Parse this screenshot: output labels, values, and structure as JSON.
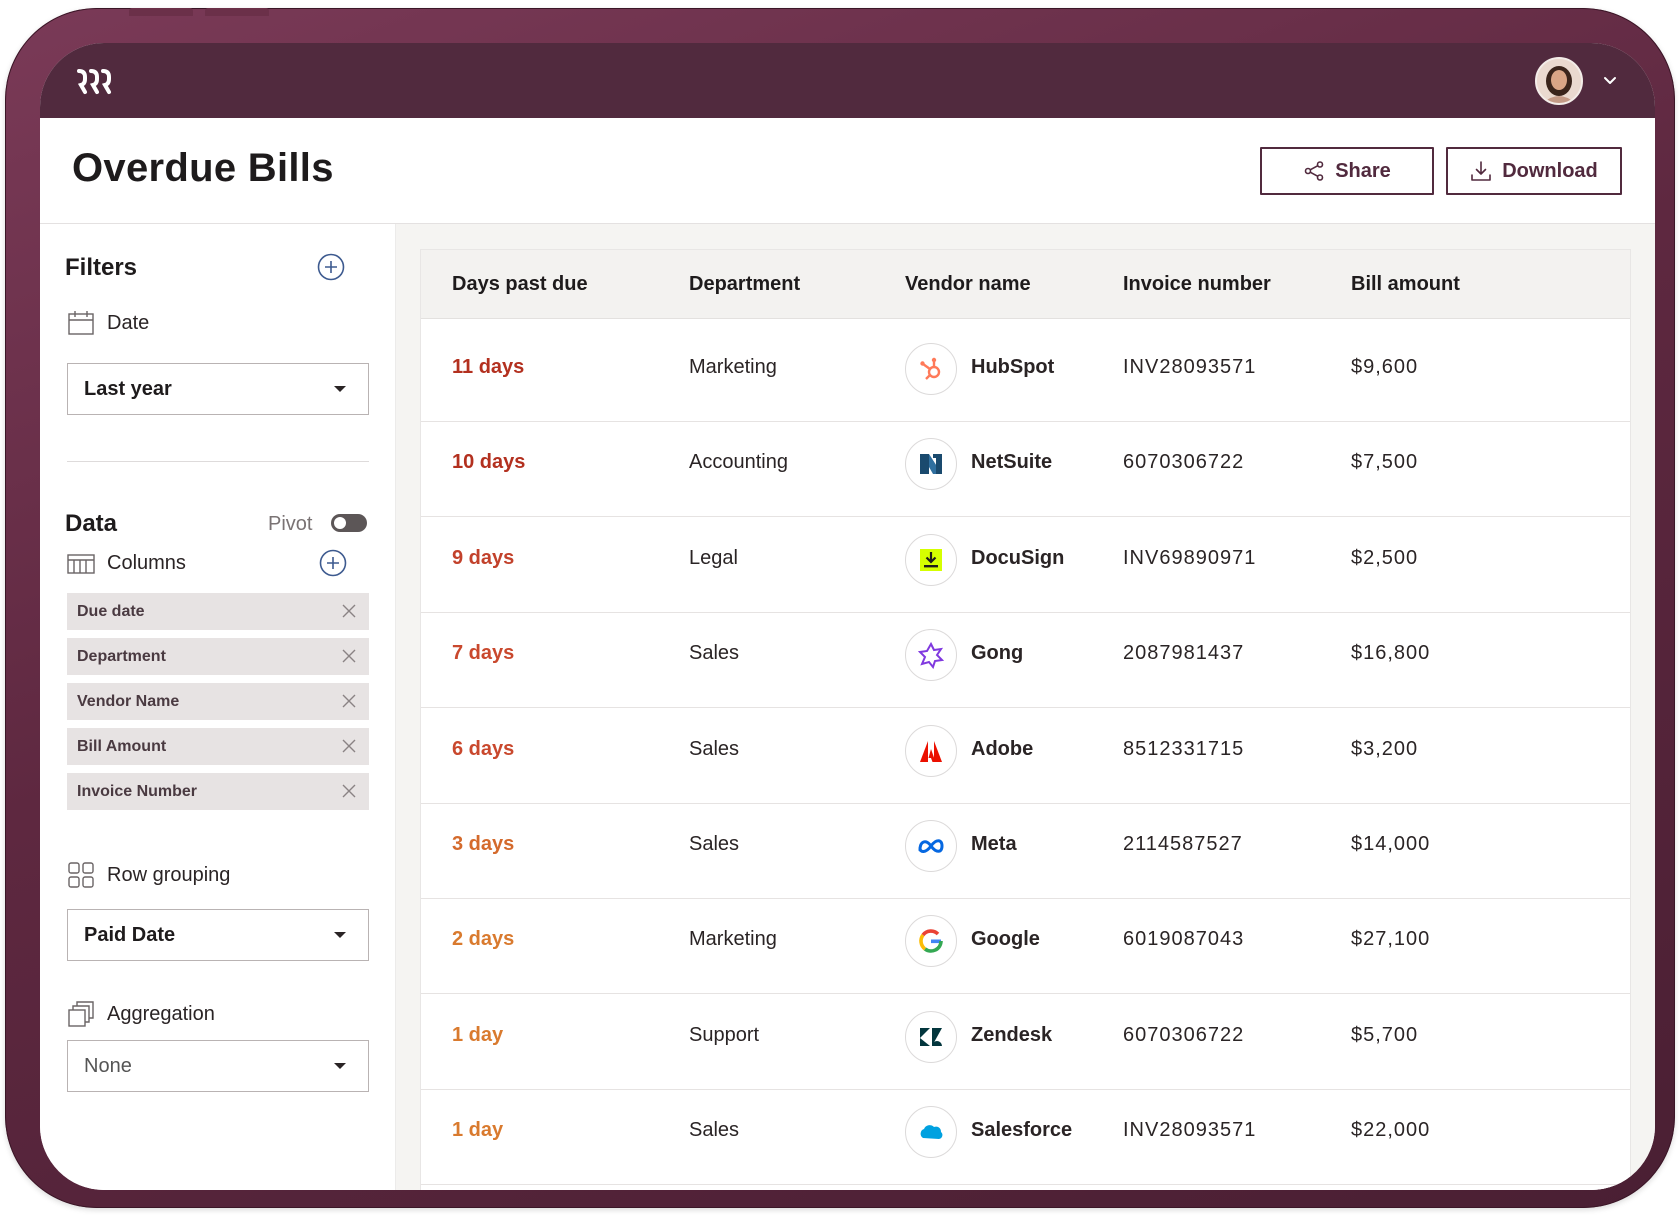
{
  "header": {
    "title": "Overdue Bills",
    "share_label": "Share",
    "download_label": "Download"
  },
  "sidebar": {
    "filters_title": "Filters",
    "date_label": "Date",
    "date_value": "Last year",
    "data_title": "Data",
    "pivot_label": "Pivot",
    "pivot_enabled": false,
    "columns_label": "Columns",
    "column_chips": [
      "Due date",
      "Department",
      "Vendor Name",
      "Bill Amount",
      "Invoice Number"
    ],
    "row_grouping_label": "Row grouping",
    "row_grouping_value": "Paid Date",
    "aggregation_label": "Aggregation",
    "aggregation_value": "None"
  },
  "table": {
    "columns": [
      "Days past due",
      "Department",
      "Vendor name",
      "Invoice number",
      "Bill amount"
    ],
    "rows": [
      {
        "days": "11 days",
        "department": "Marketing",
        "vendor": "HubSpot",
        "invoice": "INV28093571",
        "amount": "$9,600",
        "days_color": "#b3301f",
        "icon": "hubspot-logo-icon"
      },
      {
        "days": "10 days",
        "department": "Accounting",
        "vendor": "NetSuite",
        "invoice": "6070306722",
        "amount": "$7,500",
        "days_color": "#b3301f",
        "icon": "netsuite-logo-icon"
      },
      {
        "days": "9 days",
        "department": "Legal",
        "vendor": "DocuSign",
        "invoice": "INV69890971",
        "amount": "$2,500",
        "days_color": "#c2412b",
        "icon": "docusign-logo-icon"
      },
      {
        "days": "7 days",
        "department": "Sales",
        "vendor": "Gong",
        "invoice": "2087981437",
        "amount": "$16,800",
        "days_color": "#c9482d",
        "icon": "gong-logo-icon"
      },
      {
        "days": "6 days",
        "department": "Sales",
        "vendor": "Adobe",
        "invoice": "8512331715",
        "amount": "$3,200",
        "days_color": "#c9482d",
        "icon": "adobe-logo-icon"
      },
      {
        "days": "3 days",
        "department": "Sales",
        "vendor": "Meta",
        "invoice": "2114587527",
        "amount": "$14,000",
        "days_color": "#d46a2c",
        "icon": "meta-logo-icon"
      },
      {
        "days": "2 days",
        "department": "Marketing",
        "vendor": "Google",
        "invoice": "6019087043",
        "amount": "$27,100",
        "days_color": "#d97a2e",
        "icon": "google-logo-icon"
      },
      {
        "days": "1 day",
        "department": "Support",
        "vendor": "Zendesk",
        "invoice": "6070306722",
        "amount": "$5,700",
        "days_color": "#d97a2e",
        "icon": "zendesk-logo-icon"
      },
      {
        "days": "1 day",
        "department": "Sales",
        "vendor": "Salesforce",
        "invoice": "INV28093571",
        "amount": "$22,000",
        "days_color": "#d97a2e",
        "icon": "salesforce-logo-icon"
      }
    ]
  },
  "colors": {
    "brand": "#512a3e",
    "frame": "#6b2f4b"
  }
}
